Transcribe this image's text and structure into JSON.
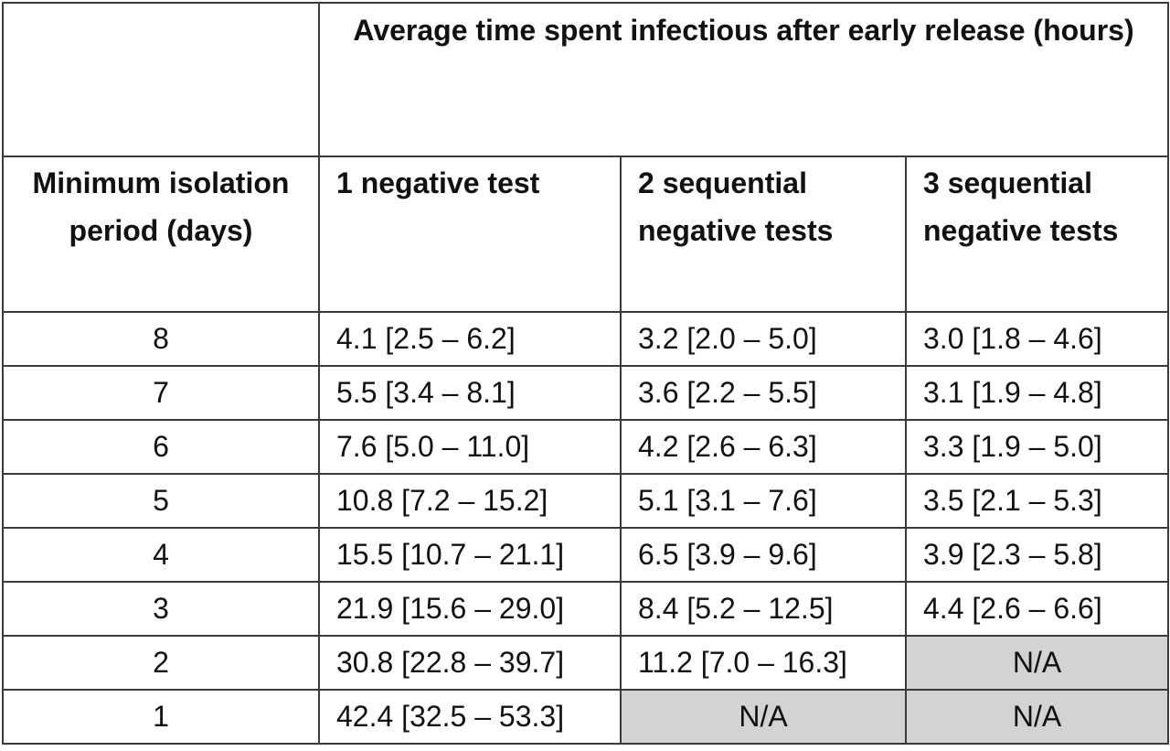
{
  "header": {
    "super_title": "Average time spent infectious after early release (hours)",
    "row_header": "Minimum isolation period (days)",
    "columns": [
      "1 negative test",
      "2 sequential negative tests",
      "3 sequential negative tests"
    ]
  },
  "rows": [
    {
      "days": "8",
      "values": [
        "4.1 [2.5 – 6.2]",
        "3.2 [2.0 – 5.0]",
        "3.0 [1.8 – 4.6]"
      ]
    },
    {
      "days": "7",
      "values": [
        "5.5 [3.4 – 8.1]",
        "3.6 [2.2 – 5.5]",
        "3.1 [1.9 – 4.8]"
      ]
    },
    {
      "days": "6",
      "values": [
        "7.6 [5.0 – 11.0]",
        "4.2 [2.6 – 6.3]",
        "3.3 [1.9 – 5.0]"
      ]
    },
    {
      "days": "5",
      "values": [
        "10.8 [7.2 – 15.2]",
        "5.1 [3.1 – 7.6]",
        "3.5 [2.1 – 5.3]"
      ]
    },
    {
      "days": "4",
      "values": [
        "15.5 [10.7 – 21.1]",
        "6.5 [3.9 – 9.6]",
        "3.9 [2.3 – 5.8]"
      ]
    },
    {
      "days": "3",
      "values": [
        "21.9 [15.6 – 29.0]",
        "8.4 [5.2 – 12.5]",
        "4.4 [2.6 – 6.6]"
      ]
    },
    {
      "days": "2",
      "values": [
        "30.8 [22.8 – 39.7]",
        "11.2 [7.0 – 16.3]",
        "N/A"
      ]
    },
    {
      "days": "1",
      "values": [
        "42.4 [32.5 – 53.3]",
        "N/A",
        "N/A"
      ]
    }
  ],
  "colors": {
    "border": "#3a3a3a",
    "na_fill": "#d3d3d3",
    "text": "#111111"
  }
}
